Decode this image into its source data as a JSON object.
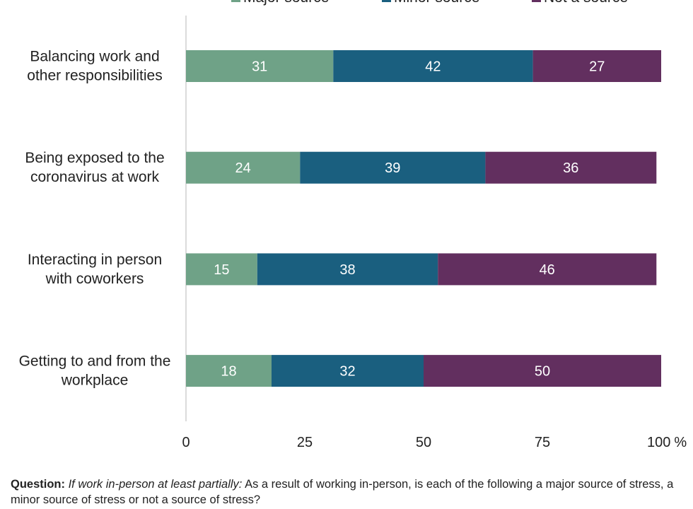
{
  "chart_data": {
    "type": "bar",
    "orientation": "horizontal",
    "stacked": true,
    "categories": [
      [
        "Balancing work and",
        "other responsibilities"
      ],
      [
        "Being exposed to the",
        "coronavirus at work"
      ],
      [
        "Interacting in person",
        "with coworkers"
      ],
      [
        "Getting to and from the",
        "workplace"
      ]
    ],
    "series": [
      {
        "name": "Major source",
        "color": "#6fa287",
        "values": [
          31,
          24,
          15,
          18
        ]
      },
      {
        "name": "Minor source",
        "color": "#1a5f7f",
        "values": [
          42,
          39,
          38,
          32
        ]
      },
      {
        "name": "Not a source",
        "color": "#622f5f",
        "values": [
          27,
          36,
          46,
          50
        ]
      }
    ],
    "xlim": [
      0,
      100
    ],
    "xticks": [
      "0",
      "25",
      "50",
      "75",
      "100"
    ],
    "xtick_values": [
      0,
      25,
      50,
      75,
      100
    ],
    "x_unit": "%",
    "grid": false,
    "legend_position": "top"
  },
  "note": {
    "label": "Question:",
    "condition": "If work in-person at least partially:",
    "text": "As a result of working in-person, is each of the following a major source of stress, a minor source of stress or not a source of stress?"
  }
}
